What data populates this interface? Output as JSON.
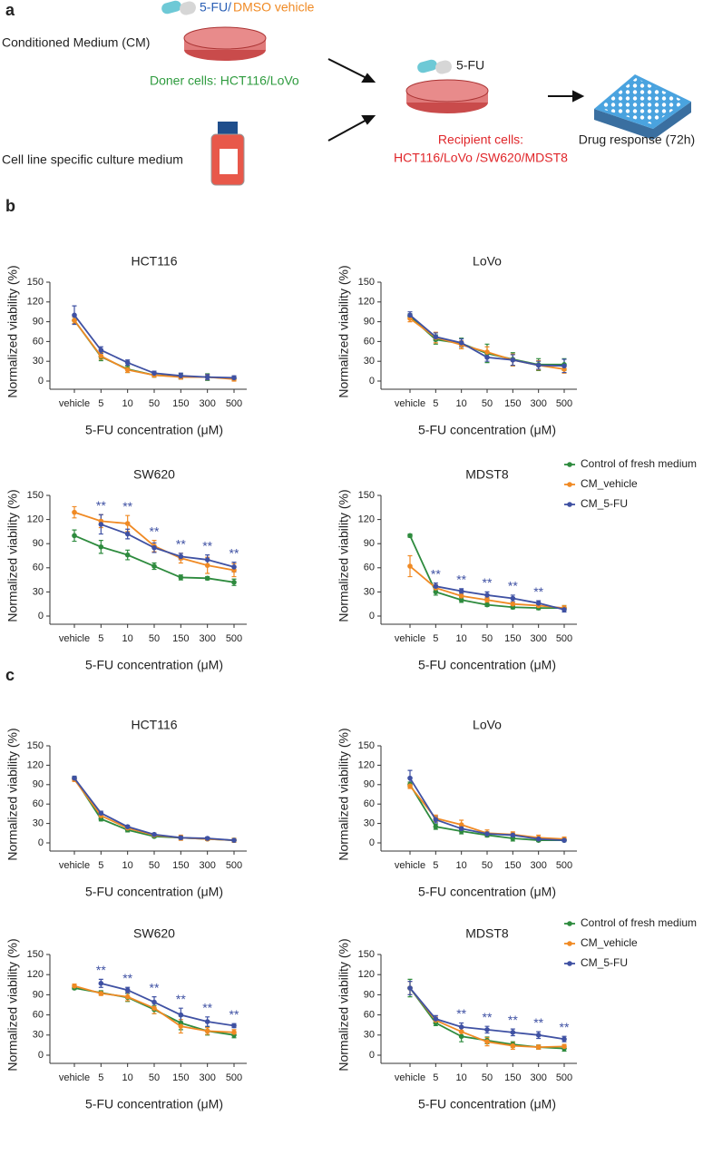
{
  "panels": [
    "a",
    "b",
    "c"
  ],
  "panel_a": {
    "cm_label": "Conditioned Medium (CM)",
    "drug_5fu": "5-FU/",
    "drug_dmso": "DMSO vehicle",
    "donor": "Doner cells: HCT116/LoVo",
    "medium_label": "Cell line specific culture medium",
    "drug_center": "5-FU",
    "recipient_line1": "Recipient cells:",
    "recipient_line2": "HCT116/LoVo /SW620/MDST8",
    "response": "Drug response (72h)"
  },
  "chart_data": [
    {
      "type": "line",
      "title": "HCT116",
      "x_label": "5-FU concentration (μM)",
      "y_label": "Normalized viability (%)",
      "categories": [
        "vehicle",
        "5",
        "10",
        "50",
        "150",
        "300",
        "500"
      ],
      "ylim": [
        0,
        150
      ],
      "yticks": [
        0,
        30,
        60,
        90,
        120,
        150
      ],
      "series": [
        {
          "color": "#2e8b3e",
          "values": [
            92,
            37,
            18,
            9,
            7,
            6,
            4
          ],
          "errors": [
            5,
            6,
            5,
            3,
            4,
            5,
            3
          ]
        },
        {
          "color": "#f08a24",
          "values": [
            92,
            38,
            17,
            9,
            6,
            6,
            3
          ],
          "errors": [
            5,
            5,
            4,
            3,
            3,
            4,
            3
          ]
        },
        {
          "color": "#3f51a3",
          "values": [
            100,
            47,
            28,
            12,
            8,
            6,
            5
          ],
          "errors": [
            14,
            5,
            4,
            3,
            4,
            4,
            3
          ]
        }
      ]
    },
    {
      "type": "line",
      "title": "LoVo",
      "x_label": "5-FU concentration (μM)",
      "y_label": "Normalized viability (%)",
      "categories": [
        "vehicle",
        "5",
        "10",
        "50",
        "150",
        "300",
        "500"
      ],
      "ylim": [
        0,
        150
      ],
      "yticks": [
        0,
        30,
        60,
        90,
        120,
        150
      ],
      "series": [
        {
          "color": "#2e8b3e",
          "values": [
            98,
            63,
            57,
            42,
            33,
            25,
            25
          ],
          "errors": [
            4,
            7,
            8,
            14,
            10,
            9,
            9
          ]
        },
        {
          "color": "#f08a24",
          "values": [
            95,
            66,
            55,
            44,
            32,
            24,
            18
          ],
          "errors": [
            5,
            8,
            6,
            8,
            9,
            7,
            6
          ]
        },
        {
          "color": "#3f51a3",
          "values": [
            100,
            67,
            58,
            36,
            32,
            24,
            23
          ],
          "errors": [
            5,
            6,
            6,
            6,
            8,
            6,
            10
          ]
        }
      ]
    },
    {
      "type": "line",
      "title": "SW620",
      "x_label": "5-FU concentration (μM)",
      "y_label": "Normalized viability (%)",
      "categories": [
        "vehicle",
        "5",
        "10",
        "50",
        "150",
        "300",
        "500"
      ],
      "ylim": [
        0,
        150
      ],
      "yticks": [
        0,
        30,
        60,
        90,
        120,
        150
      ],
      "significance": [
        null,
        "**",
        "**",
        "**",
        "**",
        "**",
        "**"
      ],
      "significance_color": "#3f51a3",
      "series": [
        {
          "color": "#2e8b3e",
          "values": [
            100,
            86,
            76,
            62,
            48,
            47,
            42
          ],
          "errors": [
            7,
            8,
            6,
            4,
            3,
            2,
            4
          ]
        },
        {
          "color": "#f08a24",
          "values": [
            129,
            118,
            115,
            87,
            72,
            63,
            57
          ],
          "errors": [
            7,
            8,
            10,
            7,
            6,
            10,
            8
          ]
        },
        {
          "color": "#3f51a3",
          "values": [
            null,
            114,
            102,
            85,
            74,
            70,
            61
          ],
          "errors": [
            null,
            12,
            6,
            6,
            4,
            6,
            6
          ]
        }
      ]
    },
    {
      "type": "line",
      "title": "MDST8",
      "x_label": "5-FU concentration (μM)",
      "y_label": "Normalized viability (%)",
      "categories": [
        "vehicle",
        "5",
        "10",
        "50",
        "150",
        "300",
        "500"
      ],
      "ylim": [
        0,
        150
      ],
      "yticks": [
        0,
        30,
        60,
        90,
        120,
        150
      ],
      "significance": [
        null,
        "**",
        "**",
        "**",
        "**",
        "**",
        null
      ],
      "significance_color": "#3f51a3",
      "legend": "right",
      "series": [
        {
          "name": "Control of fresh medium",
          "color": "#2e8b3e",
          "values": [
            100,
            30,
            20,
            14,
            11,
            10,
            10
          ],
          "errors": [
            2,
            4,
            3,
            2,
            2,
            2,
            3
          ]
        },
        {
          "name": "CM_vehicle",
          "color": "#f08a24",
          "values": [
            62,
            35,
            25,
            20,
            15,
            13,
            10
          ],
          "errors": [
            13,
            4,
            4,
            3,
            3,
            3,
            3
          ]
        },
        {
          "name": "CM_5-FU",
          "color": "#3f51a3",
          "values": [
            null,
            37,
            31,
            26,
            22,
            16,
            8
          ],
          "errors": [
            null,
            4,
            3,
            4,
            4,
            3,
            3
          ]
        }
      ]
    },
    {
      "type": "line",
      "title": "HCT116",
      "x_label": "5-FU concentration (μM)",
      "y_label": "Normalized viability (%)",
      "categories": [
        "vehicle",
        "5",
        "10",
        "50",
        "150",
        "300",
        "500"
      ],
      "ylim": [
        0,
        150
      ],
      "yticks": [
        0,
        30,
        60,
        90,
        120,
        150
      ],
      "series": [
        {
          "color": "#2e8b3e",
          "values": [
            100,
            37,
            20,
            10,
            8,
            6,
            4
          ],
          "errors": [
            2,
            3,
            3,
            2,
            2,
            2,
            3
          ]
        },
        {
          "color": "#f08a24",
          "values": [
            98,
            42,
            23,
            12,
            8,
            6,
            4
          ],
          "errors": [
            3,
            3,
            3,
            3,
            4,
            2,
            3
          ]
        },
        {
          "color": "#3f51a3",
          "values": [
            100,
            46,
            25,
            13,
            8,
            7,
            4
          ],
          "errors": [
            3,
            3,
            2,
            2,
            2,
            2,
            2
          ]
        }
      ]
    },
    {
      "type": "line",
      "title": "LoVo",
      "x_label": "5-FU concentration (μM)",
      "y_label": "Normalized viability (%)",
      "categories": [
        "vehicle",
        "5",
        "10",
        "50",
        "150",
        "300",
        "500"
      ],
      "ylim": [
        0,
        150
      ],
      "yticks": [
        0,
        30,
        60,
        90,
        120,
        150
      ],
      "series": [
        {
          "color": "#2e8b3e",
          "values": [
            90,
            25,
            18,
            12,
            7,
            4,
            4
          ],
          "errors": [
            4,
            4,
            4,
            3,
            4,
            2,
            2
          ]
        },
        {
          "color": "#f08a24",
          "values": [
            88,
            38,
            28,
            15,
            13,
            8,
            6
          ],
          "errors": [
            4,
            5,
            7,
            5,
            4,
            4,
            3
          ]
        },
        {
          "color": "#3f51a3",
          "values": [
            100,
            36,
            22,
            14,
            12,
            6,
            4
          ],
          "errors": [
            12,
            5,
            3,
            3,
            3,
            3,
            2
          ]
        }
      ]
    },
    {
      "type": "line",
      "title": "SW620",
      "x_label": "5-FU concentration (μM)",
      "y_label": "Normalized viability (%)",
      "categories": [
        "vehicle",
        "5",
        "10",
        "50",
        "150",
        "300",
        "500"
      ],
      "ylim": [
        0,
        150
      ],
      "yticks": [
        0,
        30,
        60,
        90,
        120,
        150
      ],
      "significance": [
        null,
        "**",
        "**",
        "**",
        "**",
        "**",
        "**"
      ],
      "significance_color": "#3f51a3",
      "series": [
        {
          "color": "#2e8b3e",
          "values": [
            100,
            93,
            86,
            68,
            48,
            36,
            30
          ],
          "errors": [
            2,
            3,
            6,
            6,
            10,
            6,
            4
          ]
        },
        {
          "color": "#f08a24",
          "values": [
            103,
            92,
            87,
            70,
            43,
            36,
            34
          ],
          "errors": [
            3,
            3,
            6,
            8,
            10,
            5,
            4
          ]
        },
        {
          "color": "#3f51a3",
          "values": [
            null,
            107,
            97,
            79,
            60,
            50,
            44
          ],
          "errors": [
            null,
            6,
            4,
            8,
            10,
            7,
            3
          ]
        }
      ]
    },
    {
      "type": "line",
      "title": "MDST8",
      "x_label": "5-FU concentration (μM)",
      "y_label": "Normalized viability (%)",
      "categories": [
        "vehicle",
        "5",
        "10",
        "50",
        "150",
        "300",
        "500"
      ],
      "ylim": [
        0,
        150
      ],
      "yticks": [
        0,
        30,
        60,
        90,
        120,
        150
      ],
      "significance": [
        null,
        null,
        "**",
        "**",
        "**",
        "**",
        "**"
      ],
      "significance_color": "#3f51a3",
      "legend": "right",
      "series": [
        {
          "name": "Control of fresh medium",
          "color": "#2e8b3e",
          "values": [
            100,
            48,
            28,
            22,
            16,
            12,
            10
          ],
          "errors": [
            13,
            4,
            8,
            5,
            4,
            3,
            4
          ]
        },
        {
          "name": "CM_vehicle",
          "color": "#f08a24",
          "values": [
            100,
            52,
            35,
            20,
            14,
            12,
            13
          ],
          "errors": [
            10,
            5,
            6,
            6,
            5,
            3,
            3
          ]
        },
        {
          "name": "CM_5-FU",
          "color": "#3f51a3",
          "values": [
            100,
            54,
            42,
            38,
            34,
            30,
            24
          ],
          "errors": [
            10,
            5,
            6,
            5,
            5,
            5,
            4
          ]
        }
      ]
    }
  ]
}
